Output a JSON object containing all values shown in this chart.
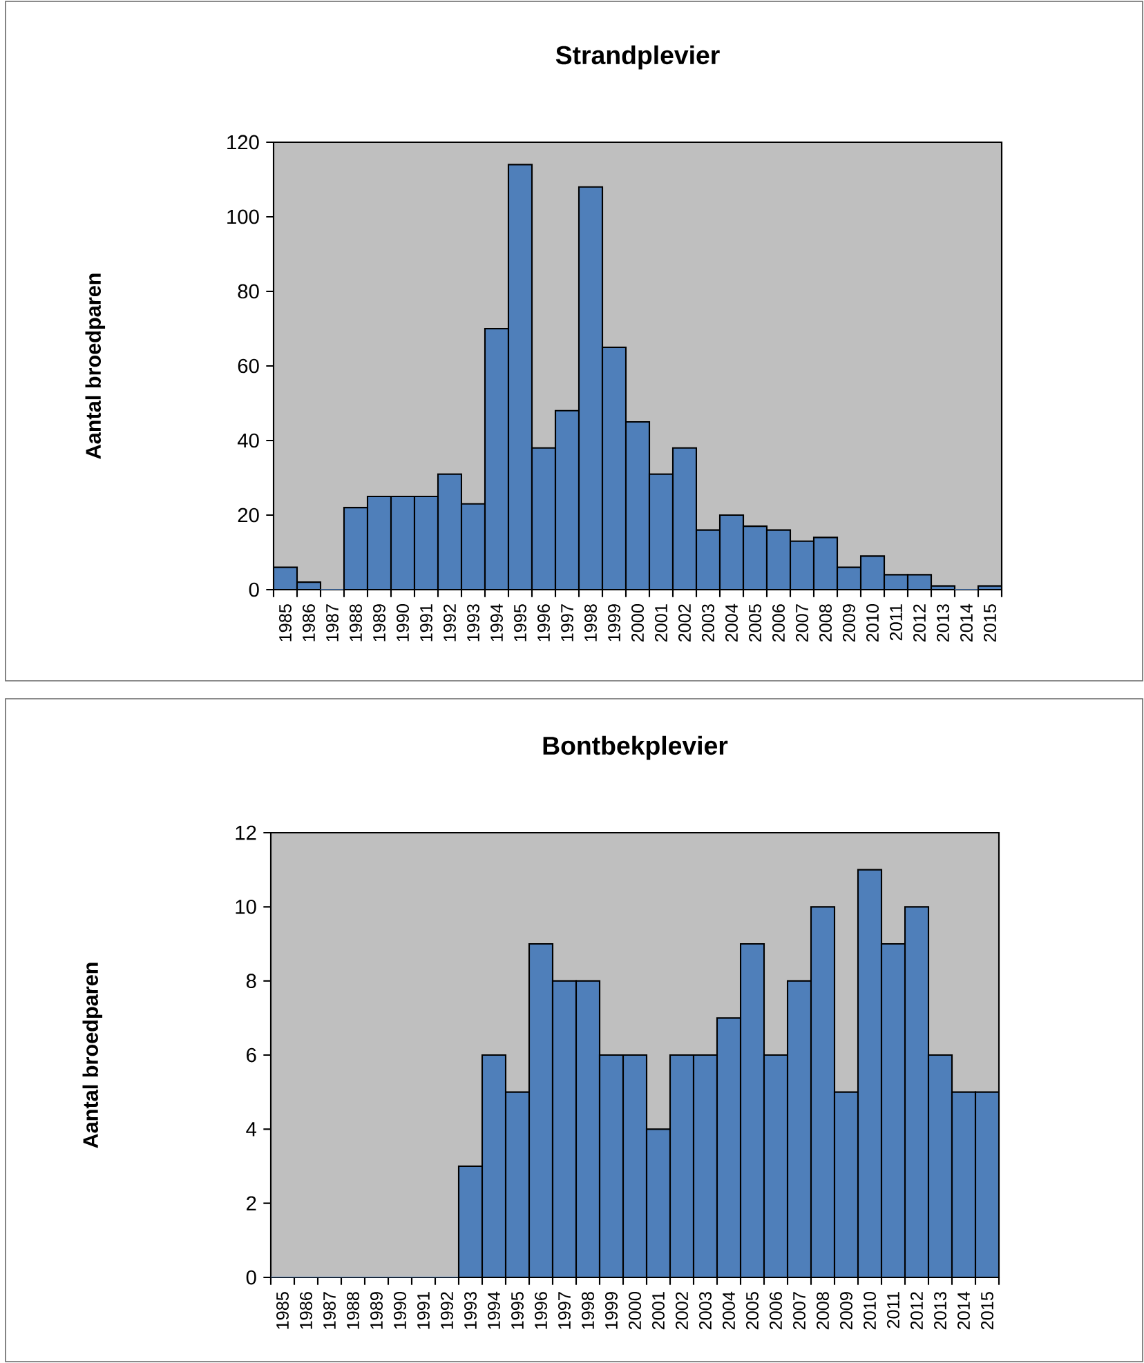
{
  "chart_data": [
    {
      "type": "bar",
      "title": "Strandplevier",
      "ylabel": "Aantal broedparen",
      "categories": [
        "1985",
        "1986",
        "1987",
        "1988",
        "1989",
        "1990",
        "1991",
        "1992",
        "1993",
        "1994",
        "1995",
        "1996",
        "1997",
        "1998",
        "1999",
        "2000",
        "2001",
        "2002",
        "2003",
        "2004",
        "2005",
        "2006",
        "2007",
        "2008",
        "2009",
        "2010",
        "2011",
        "2012",
        "2013",
        "2014",
        "2015"
      ],
      "values": [
        6,
        2,
        0,
        22,
        25,
        25,
        25,
        31,
        23,
        70,
        114,
        38,
        48,
        108,
        65,
        45,
        31,
        38,
        16,
        20,
        17,
        16,
        13,
        14,
        6,
        9,
        4,
        4,
        1,
        0,
        1
      ],
      "color": "#4f7fba",
      "ylim": [
        0,
        120
      ],
      "yticks": [
        0,
        20,
        40,
        60,
        80,
        100,
        120
      ]
    },
    {
      "type": "bar",
      "title": "Bontbekplevier",
      "ylabel": "Aantal broedparen",
      "categories": [
        "1985",
        "1986",
        "1987",
        "1988",
        "1989",
        "1990",
        "1991",
        "1992",
        "1993",
        "1994",
        "1995",
        "1996",
        "1997",
        "1998",
        "1999",
        "2000",
        "2001",
        "2002",
        "2003",
        "2004",
        "2005",
        "2006",
        "2007",
        "2008",
        "2009",
        "2010",
        "2011",
        "2012",
        "2013",
        "2014",
        "2015"
      ],
      "values": [
        0,
        0,
        0,
        0,
        0,
        0,
        0,
        0,
        3,
        6,
        5,
        9,
        8,
        8,
        6,
        6,
        4,
        6,
        6,
        7,
        9,
        6,
        8,
        10,
        5,
        11,
        9,
        10,
        6,
        5,
        5
      ],
      "color": "#4f7fba",
      "ylim": [
        0,
        12
      ],
      "yticks": [
        0,
        2,
        4,
        6,
        8,
        10,
        12
      ]
    }
  ]
}
